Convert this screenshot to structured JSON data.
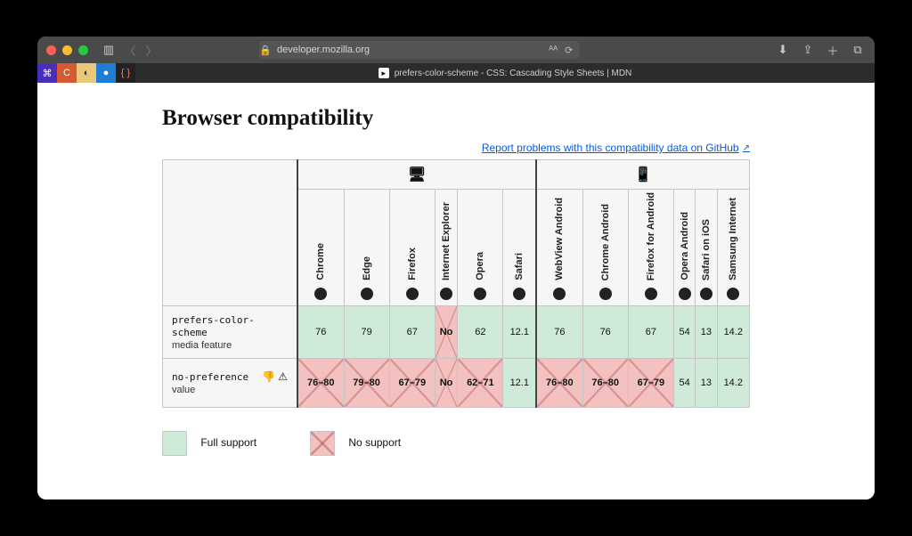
{
  "browser_chrome": {
    "url": "developer.mozilla.org",
    "tab_title": "prefers-color-scheme - CSS: Cascading Style Sheets | MDN"
  },
  "heading": "Browser compatibility",
  "report_link": "Report problems with this compatibility data on GitHub",
  "platforms": {
    "desktop_icon": "🖥",
    "mobile_icon": "📱"
  },
  "browsers": [
    {
      "name": "Chrome",
      "group": "d"
    },
    {
      "name": "Edge",
      "group": "d"
    },
    {
      "name": "Firefox",
      "group": "d"
    },
    {
      "name": "Internet Explorer",
      "group": "d"
    },
    {
      "name": "Opera",
      "group": "d"
    },
    {
      "name": "Safari",
      "group": "d"
    },
    {
      "name": "WebView Android",
      "group": "m"
    },
    {
      "name": "Chrome Android",
      "group": "m"
    },
    {
      "name": "Firefox for Android",
      "group": "m"
    },
    {
      "name": "Opera Android",
      "group": "m"
    },
    {
      "name": "Safari on iOS",
      "group": "m"
    },
    {
      "name": "Samsung Internet",
      "group": "m"
    }
  ],
  "rows": [
    {
      "code": "prefers-color-scheme",
      "meta": "media feature",
      "badges": "",
      "cells": [
        {
          "v": "76",
          "s": "full"
        },
        {
          "v": "79",
          "s": "full"
        },
        {
          "v": "67",
          "s": "full"
        },
        {
          "v": "No",
          "s": "no"
        },
        {
          "v": "62",
          "s": "full"
        },
        {
          "v": "12.1",
          "s": "full"
        },
        {
          "v": "76",
          "s": "full"
        },
        {
          "v": "76",
          "s": "full"
        },
        {
          "v": "67",
          "s": "full"
        },
        {
          "v": "54",
          "s": "full"
        },
        {
          "v": "13",
          "s": "full"
        },
        {
          "v": "14.2",
          "s": "full"
        }
      ]
    },
    {
      "code": "no-preference",
      "meta": "value",
      "badges": "👎 ⚠︎",
      "cells": [
        {
          "v": "76–80",
          "s": "no"
        },
        {
          "v": "79–80",
          "s": "no"
        },
        {
          "v": "67–79",
          "s": "no"
        },
        {
          "v": "No",
          "s": "no"
        },
        {
          "v": "62–71",
          "s": "no"
        },
        {
          "v": "12.1",
          "s": "full"
        },
        {
          "v": "76–80",
          "s": "no"
        },
        {
          "v": "76–80",
          "s": "no"
        },
        {
          "v": "67–79",
          "s": "no"
        },
        {
          "v": "54",
          "s": "full"
        },
        {
          "v": "13",
          "s": "full"
        },
        {
          "v": "14.2",
          "s": "full"
        }
      ]
    }
  ],
  "legend": {
    "full": "Full support",
    "no": "No support"
  },
  "colors": {
    "full": "#cfead9",
    "no": "#f4c1c1"
  }
}
